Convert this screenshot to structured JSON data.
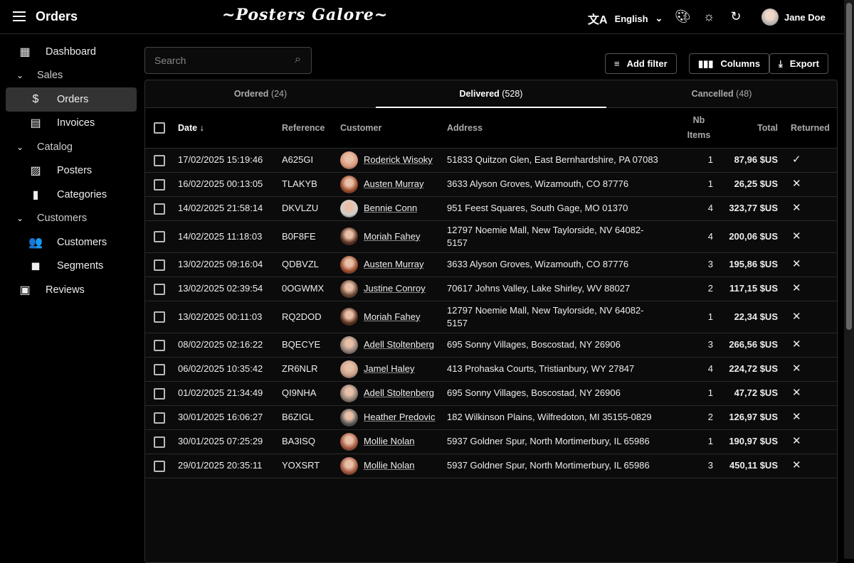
{
  "topbar": {
    "title": "Orders",
    "logo": "~Posters Galore~",
    "language": "English",
    "user": "Jane Doe"
  },
  "sidebar": {
    "items": [
      {
        "label": "Dashboard",
        "icon": "dashboard-icon",
        "glyph": "▦",
        "level": "l0"
      },
      {
        "label": "Sales",
        "icon": "chevron-down-icon",
        "glyph": "⌄",
        "level": "grp"
      },
      {
        "label": "Orders",
        "icon": "dollar-icon",
        "glyph": "$",
        "level": "l1 active"
      },
      {
        "label": "Invoices",
        "icon": "invoices-icon",
        "glyph": "▤",
        "level": "l1"
      },
      {
        "label": "Catalog",
        "icon": "chevron-down-icon",
        "glyph": "⌄",
        "level": "grp"
      },
      {
        "label": "Posters",
        "icon": "image-icon",
        "glyph": "▨",
        "level": "l1"
      },
      {
        "label": "Categories",
        "icon": "bookmark-icon",
        "glyph": "▮",
        "level": "l1"
      },
      {
        "label": "Customers",
        "icon": "chevron-down-icon",
        "glyph": "⌄",
        "level": "grp"
      },
      {
        "label": "Customers",
        "icon": "people-icon",
        "glyph": "👥",
        "level": "l1"
      },
      {
        "label": "Segments",
        "icon": "label-icon",
        "glyph": "◼",
        "level": "l1"
      },
      {
        "label": "Reviews",
        "icon": "comment-icon",
        "glyph": "▣",
        "level": "l0"
      }
    ]
  },
  "search": {
    "placeholder": "Search",
    "value": ""
  },
  "toolbar": {
    "add_filter": "Add filter",
    "columns": "Columns",
    "export": "Export"
  },
  "tabs": [
    {
      "label": "Ordered",
      "count": "(24)"
    },
    {
      "label": "Delivered",
      "count": "(528)",
      "active": true
    },
    {
      "label": "Cancelled",
      "count": "(48)"
    }
  ],
  "columns": {
    "date": "Date",
    "reference": "Reference",
    "customer": "Customer",
    "address": "Address",
    "nb_items": "Nb Items",
    "total": "Total",
    "returned": "Returned"
  },
  "rows": [
    {
      "date": "17/02/2025 15:19:46",
      "ref": "A625GI",
      "customer": "Roderick Wisoky",
      "address": "51833 Quitzon Glen, East Bernhardshire, PA 07083",
      "nb": "1",
      "total": "87,96 $US",
      "returned": true
    },
    {
      "date": "16/02/2025 00:13:05",
      "ref": "TLAKYB",
      "customer": "Austen Murray",
      "address": "3633 Alyson Groves, Wizamouth, CO 87776",
      "nb": "1",
      "total": "26,25 $US",
      "returned": false
    },
    {
      "date": "14/02/2025 21:58:14",
      "ref": "DKVLZU",
      "customer": "Bennie Conn",
      "address": "951 Feest Squares, South Gage, MO 01370",
      "nb": "4",
      "total": "323,77 $US",
      "returned": false
    },
    {
      "date": "14/02/2025 11:18:03",
      "ref": "B0F8FE",
      "customer": "Moriah Fahey",
      "address": "12797 Noemie Mall, New Taylorside, NV 64082-5157",
      "nb": "4",
      "total": "200,06 $US",
      "returned": false
    },
    {
      "date": "13/02/2025 09:16:04",
      "ref": "QDBVZL",
      "customer": "Austen Murray",
      "address": "3633 Alyson Groves, Wizamouth, CO 87776",
      "nb": "3",
      "total": "195,86 $US",
      "returned": false
    },
    {
      "date": "13/02/2025 02:39:54",
      "ref": "0OGWMX",
      "customer": "Justine Conroy",
      "address": "70617 Johns Valley, Lake Shirley, WV 88027",
      "nb": "2",
      "total": "117,15 $US",
      "returned": false
    },
    {
      "date": "13/02/2025 00:11:03",
      "ref": "RQ2DOD",
      "customer": "Moriah Fahey",
      "address": "12797 Noemie Mall, New Taylorside, NV 64082-5157",
      "nb": "1",
      "total": "22,34 $US",
      "returned": false
    },
    {
      "date": "08/02/2025 02:16:22",
      "ref": "BQECYE",
      "customer": "Adell Stoltenberg",
      "address": "695 Sonny Villages, Boscostad, NY 26906",
      "nb": "3",
      "total": "266,56 $US",
      "returned": false
    },
    {
      "date": "06/02/2025 10:35:42",
      "ref": "ZR6NLR",
      "customer": "Jamel Haley",
      "address": "413 Prohaska Courts, Tristianbury, WY 27847",
      "nb": "4",
      "total": "224,72 $US",
      "returned": false
    },
    {
      "date": "01/02/2025 21:34:49",
      "ref": "QI9NHA",
      "customer": "Adell Stoltenberg",
      "address": "695 Sonny Villages, Boscostad, NY 26906",
      "nb": "1",
      "total": "47,72 $US",
      "returned": false
    },
    {
      "date": "30/01/2025 16:06:27",
      "ref": "B6ZIGL",
      "customer": "Heather Predovic",
      "address": "182 Wilkinson Plains, Wilfredoton, MI 35155-0829",
      "nb": "2",
      "total": "126,97 $US",
      "returned": false
    },
    {
      "date": "30/01/2025 07:25:29",
      "ref": "BA3ISQ",
      "customer": "Mollie Nolan",
      "address": "5937 Goldner Spur, North Mortimerbury, IL 65986",
      "nb": "1",
      "total": "190,97 $US",
      "returned": false
    },
    {
      "date": "29/01/2025 20:35:11",
      "ref": "YOXSRT",
      "customer": "Mollie Nolan",
      "address": "5937 Goldner Spur, North Mortimerbury, IL 65986",
      "nb": "3",
      "total": "450,11 $US",
      "returned": false
    }
  ]
}
